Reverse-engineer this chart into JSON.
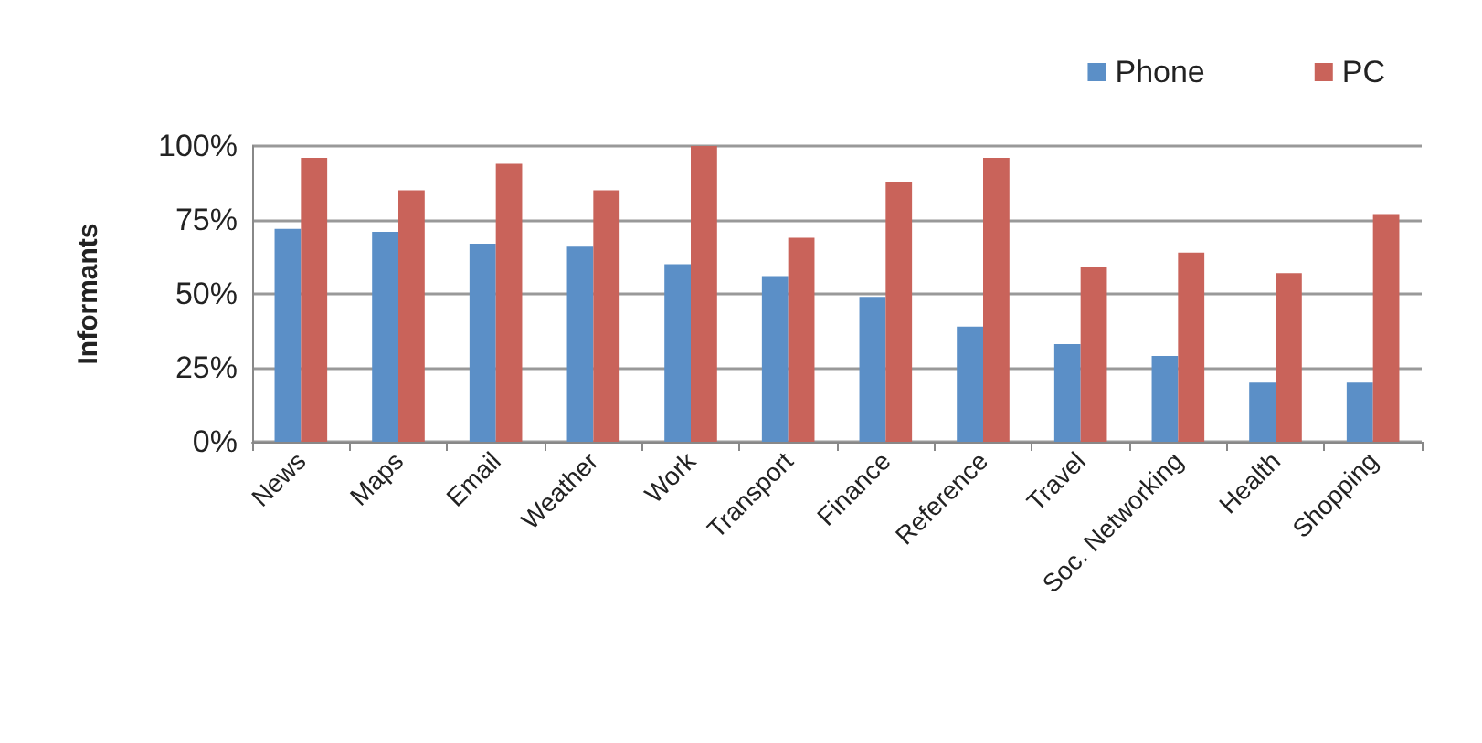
{
  "chart_data": {
    "type": "bar",
    "ylabel": "Informants",
    "categories": [
      "News",
      "Maps",
      "Email",
      "Weather",
      "Work",
      "Transport",
      "Finance",
      "Reference",
      "Travel",
      "Soc. Networking",
      "Health",
      "Shopping"
    ],
    "series": [
      {
        "name": "Phone",
        "color": "#5b8fc7",
        "values": [
          72,
          71,
          67,
          66,
          60,
          56,
          49,
          39,
          33,
          29,
          20,
          20
        ]
      },
      {
        "name": "PC",
        "color": "#c9635a",
        "values": [
          96,
          85,
          94,
          85,
          100,
          69,
          88,
          96,
          59,
          64,
          57,
          77
        ]
      }
    ],
    "ylim": [
      0,
      100
    ],
    "yticks": [
      {
        "value": 0,
        "label": "0%"
      },
      {
        "value": 25,
        "label": "25%"
      },
      {
        "value": 50,
        "label": "50%"
      },
      {
        "value": 75,
        "label": "75%"
      },
      {
        "value": 100,
        "label": "100%"
      }
    ],
    "grid": "y",
    "legend": "top right"
  }
}
